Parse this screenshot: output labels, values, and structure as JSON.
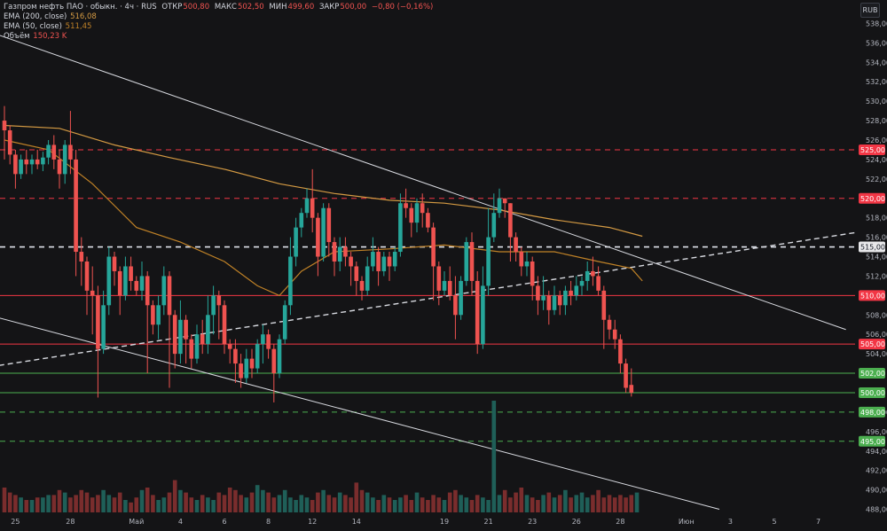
{
  "legend": {
    "symbol_line": "Газпром нефть ПАО · обыкн. · 4ч · RUS",
    "ohlc": [
      {
        "label": "ОТКР",
        "value": "500,80"
      },
      {
        "label": "МАКС",
        "value": "502,50"
      },
      {
        "label": "МИН",
        "value": "499,60"
      },
      {
        "label": "ЗАКР",
        "value": "500,00"
      }
    ],
    "change": "−0,80 (−0,16%)",
    "ema200_label": "EMA (200, close)",
    "ema200_value": "516,08",
    "ema50_label": "EMA (50, close)",
    "ema50_value": "511,45",
    "volume_label": "Объём",
    "volume_value": "150,23 K"
  },
  "currency": "RUB",
  "chart_data": {
    "type": "candlestick",
    "price_axis": {
      "ticks": [
        "538,00",
        "536,00",
        "534,00",
        "532,00",
        "530,00",
        "528,00",
        "526,00",
        "524,00",
        "522,00",
        "518,00",
        "516,00",
        "514,00",
        "512,00",
        "508,00",
        "506,00",
        "504,00",
        "498,00",
        "496,00",
        "494,00",
        "492,00",
        "490,00",
        "488,00"
      ],
      "tick_values": [
        538,
        536,
        534,
        532,
        530,
        528,
        526,
        524,
        522,
        518,
        516,
        514,
        512,
        508,
        506,
        504,
        498,
        496,
        494,
        492,
        490,
        488
      ],
      "ylim": [
        487.5,
        539.5
      ]
    },
    "time_axis": {
      "labels": [
        "25",
        "28",
        "Май",
        "4",
        "6",
        "8",
        "12",
        "14",
        "19",
        "21",
        "23",
        "26",
        "28",
        "Июн",
        "3",
        "5",
        "7"
      ],
      "label_bars": [
        2,
        12,
        24,
        32,
        40,
        48,
        56,
        64,
        80,
        88,
        96,
        104,
        112,
        124,
        132,
        140,
        148
      ]
    },
    "colors": {
      "up": "#26a69a",
      "down": "#ef5350",
      "ema200": "#d49a43",
      "ema50": "#c08227",
      "solid_red": "#f23645",
      "dash_red": "#f23645",
      "solid_green": "#4caf50",
      "dash_green": "#4caf50",
      "white": "#e0e3eb"
    },
    "horizontal_levels": [
      {
        "price": 525,
        "label": "525,00",
        "style": "dashed",
        "color": "red"
      },
      {
        "price": 520,
        "label": "520,00",
        "style": "dashed",
        "color": "red"
      },
      {
        "price": 515,
        "label": "515,00",
        "style": "dashed",
        "color": "white"
      },
      {
        "price": 510,
        "label": "510,00",
        "style": "solid",
        "color": "red"
      },
      {
        "price": 505,
        "label": "505,00",
        "style": "solid",
        "color": "red"
      },
      {
        "price": 502,
        "label": "502,00",
        "style": "solid",
        "color": "green"
      },
      {
        "price": 500,
        "label": "500,00",
        "style": "solid",
        "color": "green"
      },
      {
        "price": 498,
        "label": "498,00",
        "style": "dashed",
        "color": "green"
      },
      {
        "price": 495,
        "label": "495,00",
        "style": "dashed",
        "color": "green"
      }
    ],
    "last_price_label": "500,00",
    "trend_lines": [
      {
        "from": {
          "bar": -1,
          "price": 536.8
        },
        "to": {
          "bar": 153,
          "price": 506.5
        },
        "style": "solid"
      },
      {
        "from": {
          "bar": -1,
          "price": 507.7
        },
        "to": {
          "bar": 130,
          "price": 488.0
        },
        "style": "solid"
      },
      {
        "from": {
          "bar": -1,
          "price": 502.8
        },
        "to": {
          "bar": 155,
          "price": 516.5
        },
        "style": "dashed"
      }
    ],
    "ema200": [
      [
        0,
        527.5
      ],
      [
        10,
        527.2
      ],
      [
        20,
        525.5
      ],
      [
        30,
        524.2
      ],
      [
        40,
        523.0
      ],
      [
        50,
        521.5
      ],
      [
        60,
        520.5
      ],
      [
        70,
        519.8
      ],
      [
        80,
        519.5
      ],
      [
        90,
        518.8
      ],
      [
        100,
        517.8
      ],
      [
        110,
        517.0
      ],
      [
        116,
        516.1
      ]
    ],
    "ema50": [
      [
        0,
        526.0
      ],
      [
        8,
        525.0
      ],
      [
        16,
        521.5
      ],
      [
        24,
        517.0
      ],
      [
        32,
        515.5
      ],
      [
        40,
        513.5
      ],
      [
        46,
        511.0
      ],
      [
        50,
        510.0
      ],
      [
        54,
        512.5
      ],
      [
        60,
        514.5
      ],
      [
        70,
        514.8
      ],
      [
        80,
        515.2
      ],
      [
        90,
        514.5
      ],
      [
        100,
        514.5
      ],
      [
        108,
        513.5
      ],
      [
        114,
        512.8
      ],
      [
        116,
        511.5
      ]
    ],
    "candles": [
      [
        528,
        527,
        529.5,
        524
      ],
      [
        527,
        524.5,
        527.5,
        523.5
      ],
      [
        524.5,
        522.5,
        525,
        521
      ],
      [
        522.5,
        524,
        524.5,
        522
      ],
      [
        524,
        523.5,
        525,
        522.5
      ],
      [
        523.5,
        524,
        524.5,
        522.5
      ],
      [
        524,
        523.5,
        525,
        523
      ],
      [
        523.5,
        524.2,
        524.8,
        522.8
      ],
      [
        524.2,
        525.5,
        526,
        523.5
      ],
      [
        525.5,
        524,
        526.5,
        523
      ],
      [
        524,
        522.5,
        525,
        521
      ],
      [
        522.5,
        525.5,
        526,
        521.5
      ],
      [
        525.5,
        524,
        529,
        522.5
      ],
      [
        524,
        514.5,
        525,
        512
      ],
      [
        514.5,
        513.5,
        516,
        511
      ],
      [
        513.5,
        510.5,
        514,
        508
      ],
      [
        510.5,
        510,
        513,
        506
      ],
      [
        510,
        504.5,
        511,
        499.5
      ],
      [
        504.5,
        509,
        510.5,
        504
      ],
      [
        509,
        514,
        515,
        508
      ],
      [
        514,
        512.5,
        514.5,
        511
      ],
      [
        512.5,
        510,
        513,
        508
      ],
      [
        510,
        513,
        514,
        509.5
      ],
      [
        513,
        511.5,
        514,
        510.5
      ],
      [
        511.5,
        510.5,
        512,
        510
      ],
      [
        510.5,
        512,
        513.5,
        509.5
      ],
      [
        512,
        509,
        512.5,
        502
      ],
      [
        509,
        507,
        509.5,
        506
      ],
      [
        507,
        509,
        510,
        505.5
      ],
      [
        509,
        512,
        513,
        508
      ],
      [
        512,
        508,
        512.5,
        500.5
      ],
      [
        508,
        504,
        508.5,
        502.5
      ],
      [
        504,
        507.5,
        509.5,
        503
      ],
      [
        507.5,
        505.5,
        508,
        503
      ],
      [
        505.5,
        503.5,
        506,
        502.5
      ],
      [
        503.5,
        506,
        507,
        503
      ],
      [
        506,
        505,
        507.5,
        504
      ],
      [
        505,
        508,
        510,
        504
      ],
      [
        508,
        510,
        511,
        506
      ],
      [
        510,
        509,
        510.5,
        505.5
      ],
      [
        509,
        505,
        509.5,
        504
      ],
      [
        505,
        504.5,
        505.5,
        503
      ],
      [
        504.5,
        503,
        505.5,
        501
      ],
      [
        503,
        501.5,
        504,
        500.5
      ],
      [
        501.5,
        503.5,
        504.5,
        501
      ],
      [
        503.5,
        502.5,
        504.5,
        501.5
      ],
      [
        502.5,
        505,
        505.5,
        502
      ],
      [
        505,
        506,
        507,
        503
      ],
      [
        506,
        504.5,
        506.5,
        503.5
      ],
      [
        504.5,
        502,
        505,
        499
      ],
      [
        502,
        505.5,
        506,
        501.5
      ],
      [
        505.5,
        509,
        509.5,
        505
      ],
      [
        509,
        514,
        516,
        508
      ],
      [
        514,
        517,
        518,
        513
      ],
      [
        517,
        518.5,
        519,
        516
      ],
      [
        518.5,
        520,
        521,
        518
      ],
      [
        520,
        518,
        523,
        516.5
      ],
      [
        518,
        514,
        518.5,
        512
      ],
      [
        514,
        519,
        519.5,
        513.5
      ],
      [
        519,
        515.5,
        519.5,
        514
      ],
      [
        515.5,
        513.5,
        516,
        512
      ],
      [
        513.5,
        515,
        516,
        512.5
      ],
      [
        515,
        514,
        516,
        513
      ],
      [
        514,
        513,
        514.5,
        511
      ],
      [
        513,
        511.5,
        513.5,
        510
      ],
      [
        511.5,
        510.5,
        512,
        509.5
      ],
      [
        510.5,
        513,
        514,
        510
      ],
      [
        513,
        514.5,
        516,
        512.5
      ],
      [
        514.5,
        512.5,
        515,
        511
      ],
      [
        512.5,
        514,
        514.5,
        512
      ],
      [
        514,
        513,
        514.5,
        511.5
      ],
      [
        513,
        514.5,
        515,
        512.5
      ],
      [
        514.5,
        519.5,
        520.5,
        514
      ],
      [
        519.5,
        519,
        521,
        518
      ],
      [
        519,
        517.5,
        519.5,
        516
      ],
      [
        517.5,
        519.5,
        520,
        516.5
      ],
      [
        519.5,
        518.5,
        520.5,
        517
      ],
      [
        518.5,
        517,
        519,
        516.5
      ],
      [
        517,
        513,
        517.5,
        509.5
      ],
      [
        513,
        510.5,
        513.5,
        509
      ],
      [
        510.5,
        511.5,
        512.5,
        510
      ],
      [
        511.5,
        510,
        513,
        509.5
      ],
      [
        510,
        508,
        512,
        505.5
      ],
      [
        508,
        511.5,
        512,
        507.5
      ],
      [
        511.5,
        515.5,
        516,
        511
      ],
      [
        515.5,
        511.5,
        516.5,
        510
      ],
      [
        511.5,
        505,
        512.5,
        504
      ],
      [
        505,
        511,
        513,
        504.5
      ],
      [
        511,
        516,
        519,
        510
      ],
      [
        516,
        518.5,
        520.5,
        515.5
      ],
      [
        518.5,
        520,
        521,
        518
      ],
      [
        520,
        519.5,
        520,
        518
      ],
      [
        519.5,
        516,
        519.5,
        513.5
      ],
      [
        516,
        514.5,
        516.5,
        513.5
      ],
      [
        514.5,
        513,
        515,
        512
      ],
      [
        513,
        513.5,
        514.5,
        512
      ],
      [
        513.5,
        511,
        514,
        509.5
      ],
      [
        511,
        509.5,
        512,
        508
      ],
      [
        509.5,
        510,
        512,
        508.5
      ],
      [
        510,
        508.5,
        510.5,
        507
      ],
      [
        508.5,
        510,
        511,
        508
      ],
      [
        510,
        509,
        510.5,
        508
      ],
      [
        509,
        510.5,
        511,
        508
      ],
      [
        510.5,
        510,
        511.5,
        509
      ],
      [
        510,
        511,
        512,
        509.5
      ],
      [
        511,
        511.5,
        512,
        510
      ],
      [
        511.5,
        512.5,
        513.5,
        510.5
      ],
      [
        512.5,
        512,
        514,
        511
      ],
      [
        512,
        510.5,
        513,
        510
      ],
      [
        510.5,
        507.5,
        511,
        504.5
      ],
      [
        507.5,
        506.5,
        508,
        505.5
      ],
      [
        506.5,
        505.5,
        507.5,
        504.5
      ],
      [
        505.5,
        503,
        506,
        502
      ],
      [
        503,
        500.5,
        503.5,
        500
      ],
      [
        500.8,
        500,
        502.5,
        499.6
      ]
    ],
    "volumes": [
      1.0,
      0.8,
      0.7,
      0.6,
      0.5,
      0.5,
      0.6,
      0.6,
      0.7,
      0.7,
      0.9,
      0.8,
      0.6,
      0.7,
      0.9,
      0.8,
      0.6,
      0.7,
      0.9,
      0.7,
      0.6,
      0.8,
      0.5,
      0.4,
      0.6,
      0.9,
      1.0,
      0.7,
      0.5,
      0.6,
      0.8,
      1.3,
      0.9,
      0.8,
      0.6,
      0.5,
      0.7,
      0.6,
      0.5,
      0.8,
      0.7,
      1.0,
      0.9,
      0.7,
      0.6,
      0.8,
      1.1,
      0.9,
      0.8,
      0.6,
      0.7,
      0.9,
      0.6,
      0.5,
      0.7,
      0.6,
      0.5,
      0.8,
      0.9,
      0.7,
      0.6,
      0.8,
      0.7,
      0.6,
      1.2,
      0.9,
      0.8,
      0.6,
      0.5,
      0.7,
      0.6,
      0.5,
      0.6,
      0.7,
      0.5,
      0.8,
      0.6,
      0.5,
      0.7,
      0.6,
      0.5,
      0.8,
      0.9,
      0.7,
      0.6,
      0.5,
      0.7,
      0.6,
      0.5,
      4.5,
      0.7,
      0.9,
      0.6,
      0.8,
      1.0,
      0.7,
      0.6,
      0.5,
      0.7,
      0.8,
      0.6,
      0.7,
      0.9,
      0.6,
      0.7,
      0.8,
      0.6,
      0.7,
      0.9,
      0.6,
      0.7,
      0.6,
      0.7,
      0.6,
      0.7,
      0.8
    ]
  }
}
